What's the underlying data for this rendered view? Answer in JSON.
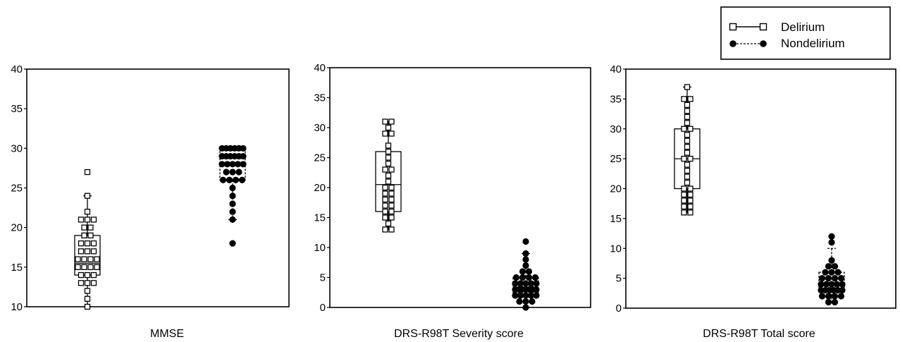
{
  "legend": {
    "entries": [
      {
        "label": "Delirium",
        "marker": "open-square",
        "line": "solid"
      },
      {
        "label": "Nondelirium",
        "marker": "filled-circle",
        "line": "dashed"
      }
    ],
    "placement": "top-right"
  },
  "chart_data": [
    {
      "type": "box",
      "xlabel": "MMSE",
      "ylim": [
        10,
        40
      ],
      "yticks": [
        10,
        15,
        20,
        25,
        30,
        35,
        40
      ],
      "grid": false,
      "series": [
        {
          "name": "Delirium",
          "marker": "open-square",
          "box": {
            "q1": 14,
            "median": 15.5,
            "q3": 19,
            "whisker_low": 10,
            "whisker_high": 24
          },
          "points": [
            27,
            24,
            22,
            21,
            21,
            21,
            20,
            20,
            19,
            19,
            18,
            18,
            18,
            17,
            17,
            17,
            16,
            16,
            16,
            16,
            15,
            15,
            15,
            15,
            14,
            14,
            14,
            13,
            13,
            13,
            12,
            11,
            10
          ]
        },
        {
          "name": "Nondelirium",
          "marker": "filled-circle",
          "box": {
            "q1": 26,
            "median": 29,
            "q3": 30,
            "whisker_low": 21,
            "whisker_high": 30
          },
          "points": [
            30,
            30,
            30,
            30,
            30,
            30,
            29,
            29,
            29,
            29,
            29,
            29,
            28,
            28,
            28,
            28,
            28,
            27,
            27,
            27,
            26,
            26,
            26,
            26,
            25,
            24,
            23,
            22,
            21,
            18
          ]
        }
      ]
    },
    {
      "type": "box",
      "xlabel": "DRS-R98T Severity score",
      "ylim": [
        0,
        40
      ],
      "yticks": [
        0,
        5,
        10,
        15,
        20,
        25,
        30,
        35,
        40
      ],
      "grid": false,
      "series": [
        {
          "name": "Delirium",
          "marker": "open-square",
          "box": {
            "q1": 16,
            "median": 20.5,
            "q3": 26,
            "whisker_low": 13,
            "whisker_high": 31
          },
          "points": [
            31,
            31,
            30,
            29,
            29,
            27,
            26,
            25,
            24,
            23,
            23,
            22,
            21,
            20,
            20,
            19,
            19,
            18,
            18,
            17,
            17,
            16,
            16,
            15,
            15,
            14,
            13,
            13
          ]
        },
        {
          "name": "Nondelirium",
          "marker": "filled-circle",
          "box": {
            "q1": 2,
            "median": 3,
            "q3": 5,
            "whisker_low": 0,
            "whisker_high": 9
          },
          "points": [
            11,
            9,
            8,
            7,
            6,
            6,
            5,
            5,
            5,
            5,
            4,
            4,
            4,
            4,
            4,
            3,
            3,
            3,
            3,
            3,
            3,
            3,
            2,
            2,
            2,
            2,
            2,
            1,
            1,
            1,
            0
          ]
        }
      ]
    },
    {
      "type": "box",
      "xlabel": "DRS-R98T Total score",
      "ylim": [
        0,
        40
      ],
      "yticks": [
        0,
        5,
        10,
        15,
        20,
        25,
        30,
        35,
        40
      ],
      "grid": false,
      "series": [
        {
          "name": "Delirium",
          "marker": "open-square",
          "box": {
            "q1": 20,
            "median": 25,
            "q3": 30,
            "whisker_low": 16,
            "whisker_high": 37
          },
          "points": [
            37,
            35,
            35,
            34,
            33,
            32,
            31,
            30,
            30,
            29,
            28,
            27,
            26,
            25,
            25,
            24,
            23,
            22,
            21,
            20,
            20,
            19,
            19,
            18,
            18,
            17,
            17,
            16,
            16
          ]
        },
        {
          "name": "Nondelirium",
          "marker": "filled-circle",
          "box": {
            "q1": 3,
            "median": 4,
            "q3": 6,
            "whisker_low": 1,
            "whisker_high": 10
          },
          "points": [
            12,
            11,
            8,
            7,
            7,
            6,
            6,
            6,
            5,
            5,
            5,
            5,
            4,
            4,
            4,
            4,
            4,
            3,
            3,
            3,
            3,
            3,
            3,
            2,
            2,
            2,
            2,
            1,
            1
          ]
        }
      ]
    }
  ]
}
